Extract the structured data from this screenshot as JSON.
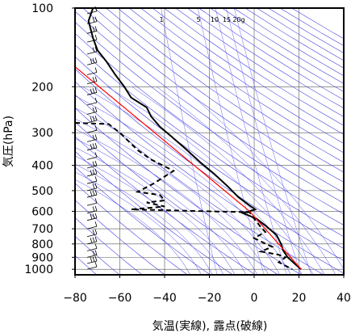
{
  "chart_data": {
    "type": "line",
    "title": "",
    "xlabel": "気温(実線), 露点(破線)",
    "ylabel": "気圧(hPa)",
    "xlim": [
      -80,
      40
    ],
    "ylim": [
      1050,
      100
    ],
    "y_scale": "log",
    "grid": true,
    "x_ticks": [
      "−80",
      "−60",
      "−40",
      "−20",
      "0",
      "20",
      "40"
    ],
    "x_tick_values": [
      -80,
      -60,
      -40,
      -20,
      0,
      20,
      40
    ],
    "y_ticks": [
      "100",
      "200",
      "300",
      "400",
      "500",
      "600",
      "700",
      "800",
      "900",
      "1000"
    ],
    "y_tick_values": [
      100,
      200,
      300,
      400,
      500,
      600,
      700,
      800,
      900,
      1000
    ],
    "mixing_ratio_labels": [
      "1",
      "5",
      "10",
      "15",
      "20g"
    ],
    "series": [
      {
        "role": "temperature",
        "style": "solid",
        "color": "#000000",
        "points": [
          [
            -72,
            100
          ],
          [
            -74,
            112
          ],
          [
            -72,
            130
          ],
          [
            -70,
            145
          ],
          [
            -66,
            160
          ],
          [
            -62,
            180
          ],
          [
            -58,
            200
          ],
          [
            -55,
            220
          ],
          [
            -48,
            240
          ],
          [
            -46,
            260
          ],
          [
            -42,
            285
          ],
          [
            -37,
            310
          ],
          [
            -30,
            350
          ],
          [
            -24,
            390
          ],
          [
            -18,
            430
          ],
          [
            -12,
            480
          ],
          [
            -7,
            530
          ],
          [
            -2,
            570
          ],
          [
            0.5,
            590
          ],
          [
            -5,
            610
          ],
          [
            1,
            640
          ],
          [
            5,
            680
          ],
          [
            10,
            740
          ],
          [
            12,
            800
          ],
          [
            13,
            850
          ],
          [
            15,
            900
          ],
          [
            18,
            950
          ],
          [
            21,
            1000
          ]
        ]
      },
      {
        "role": "dewpoint",
        "style": "dashed",
        "color": "#000000",
        "points": [
          [
            -80,
            275
          ],
          [
            -65,
            278
          ],
          [
            -60,
            300
          ],
          [
            -52,
            350
          ],
          [
            -46,
            380
          ],
          [
            -36,
            420
          ],
          [
            -45,
            470
          ],
          [
            -52,
            505
          ],
          [
            -42,
            520
          ],
          [
            -40,
            545
          ],
          [
            -48,
            555
          ],
          [
            -40,
            575
          ],
          [
            -55,
            590
          ],
          [
            -2,
            605
          ],
          [
            0,
            640
          ],
          [
            3,
            690
          ],
          [
            5,
            720
          ],
          [
            0,
            760
          ],
          [
            4,
            790
          ],
          [
            8,
            820
          ],
          [
            3,
            855
          ],
          [
            11,
            880
          ],
          [
            14,
            900
          ],
          [
            11,
            940
          ],
          [
            17,
            1000
          ]
        ]
      },
      {
        "role": "reference",
        "style": "solid",
        "color": "#ff0000",
        "points": [
          [
            -81,
            165
          ],
          [
            -2,
            600
          ],
          [
            21,
            1000
          ]
        ]
      }
    ]
  }
}
